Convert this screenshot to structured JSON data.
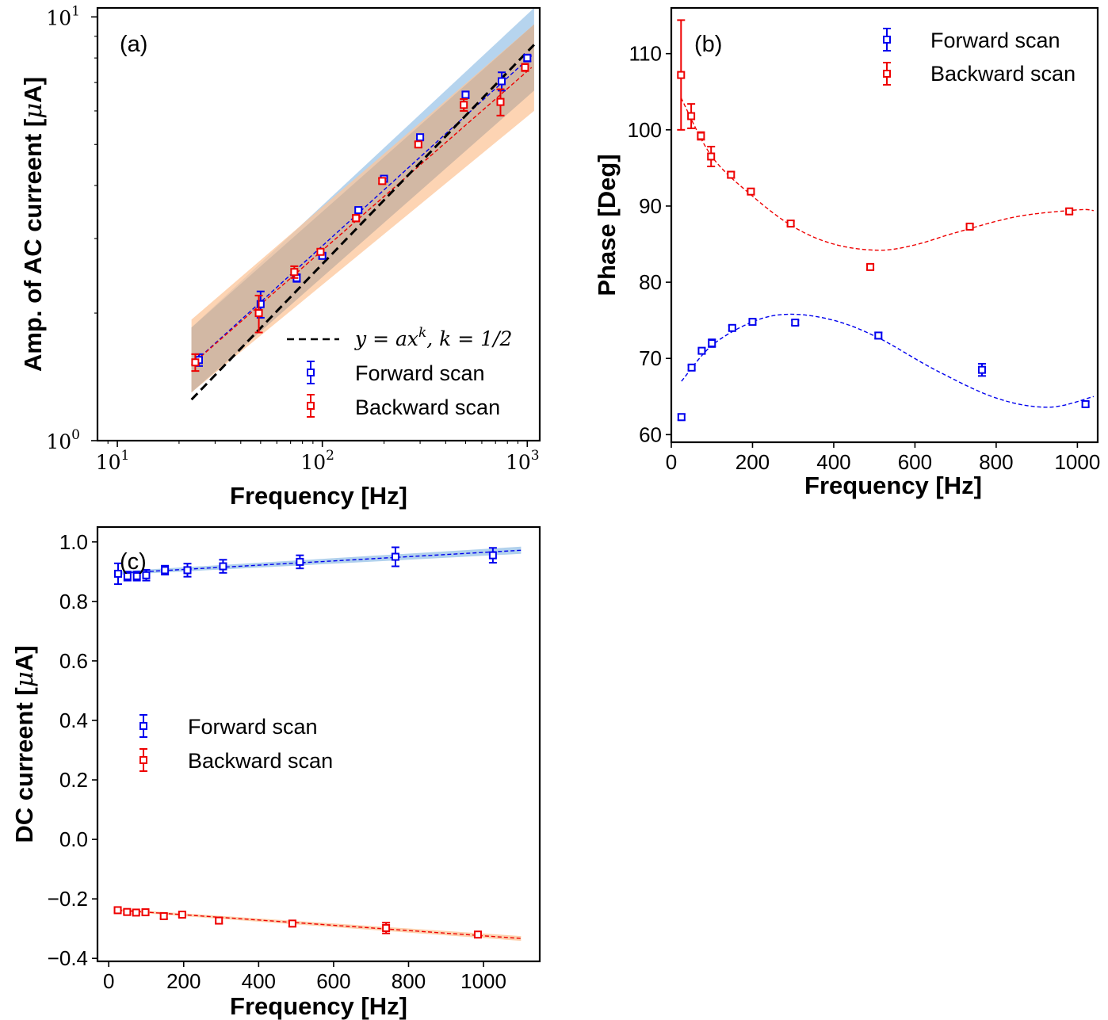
{
  "colors": {
    "forward": "#0000ee",
    "backward": "#ee0000",
    "forward_band": "#9ec5e8",
    "backward_band": "#fcc59a",
    "overlap_band": "#d2b8a4",
    "power_law": "#000000"
  },
  "legend": {
    "forward": "Forward scan",
    "backward": "Backward scan",
    "fit_prefix": "y = ax",
    "fit_exp": "k",
    "fit_suffix": ", k = 1/2"
  },
  "chart_data": [
    {
      "type": "scatter",
      "panel_label": "(a)",
      "xlabel": "Frequency [Hz]",
      "ylabel_prefix": "Amp. of AC curreent [",
      "ylabel_mu": "μ",
      "ylabel_suffix": "A]",
      "xscale": "log",
      "yscale": "log",
      "xlim": [
        8,
        1150
      ],
      "ylim": [
        1,
        10.5
      ],
      "xtick_base": "10",
      "xtick_exponents": [
        "1",
        "2",
        "3"
      ],
      "xticks": [
        10,
        100,
        1000
      ],
      "ytick_base": "10",
      "ytick_exponents": [
        "0",
        "1"
      ],
      "yticks": [
        1,
        10
      ],
      "legend_position": "lower-right",
      "series": [
        {
          "name": "Forward scan",
          "x": [
            25,
            50,
            75,
            100,
            150,
            200,
            300,
            500,
            750,
            1000
          ],
          "y": [
            1.55,
            2.1,
            2.42,
            2.73,
            3.5,
            4.15,
            5.2,
            6.55,
            7.05,
            8.0
          ],
          "yerr": [
            0.05,
            0.15,
            0.05,
            0.04,
            0.04,
            0.04,
            0.05,
            0.12,
            0.35,
            0.15
          ]
        },
        {
          "name": "Backward scan",
          "x": [
            24,
            49,
            73,
            98,
            146,
            196,
            294,
            490,
            740,
            975
          ],
          "y": [
            1.53,
            2.0,
            2.5,
            2.79,
            3.35,
            4.1,
            5.0,
            6.2,
            6.3,
            7.6
          ],
          "yerr": [
            0.07,
            0.2,
            0.08,
            0.04,
            0.06,
            0.06,
            0.07,
            0.2,
            0.45,
            0.15
          ]
        }
      ],
      "power_law": {
        "k": 0.5,
        "x": [
          23,
          1080
        ],
        "y": [
          1.25,
          8.6
        ]
      },
      "fit_forward": {
        "x": [
          23,
          1050
        ],
        "y": [
          1.51,
          8.1
        ]
      },
      "fit_backward": {
        "x": [
          23,
          1050
        ],
        "y": [
          1.51,
          7.6
        ]
      },
      "band_forward": {
        "x": [
          23,
          1080
        ],
        "lower": [
          1.3,
          6.7
        ],
        "upper": [
          1.85,
          10.5
        ]
      },
      "band_backward": {
        "x": [
          23,
          1080
        ],
        "lower": [
          1.3,
          6.0
        ],
        "upper": [
          1.93,
          9.6
        ]
      }
    },
    {
      "type": "scatter",
      "panel_label": "(b)",
      "xlabel": "Frequency [Hz]",
      "ylabel": "Phase [Deg]",
      "xlim": [
        0,
        1050
      ],
      "ylim": [
        59,
        116
      ],
      "xticks": [
        0,
        200,
        400,
        600,
        800,
        1000
      ],
      "yticks": [
        60,
        70,
        80,
        90,
        100,
        110
      ],
      "legend_position": "top-right",
      "series": [
        {
          "name": "Forward scan",
          "x": [
            25,
            50,
            75,
            100,
            150,
            200,
            305,
            510,
            765,
            1020
          ],
          "y": [
            62.3,
            68.8,
            71.0,
            72.0,
            74.0,
            74.8,
            74.7,
            73.0,
            68.5,
            64.0
          ],
          "yerr": [
            0.4,
            0.3,
            0.3,
            0.5,
            0.3,
            0.3,
            0.3,
            0.4,
            0.8,
            0.3
          ]
        },
        {
          "name": "Backward scan",
          "x": [
            24,
            49,
            73,
            98,
            147,
            196,
            294,
            490,
            735,
            980
          ],
          "y": [
            107.2,
            101.8,
            99.2,
            96.5,
            94.1,
            91.9,
            87.7,
            82.0,
            87.3,
            89.3
          ],
          "yerr": [
            7.2,
            1.6,
            0.5,
            1.3,
            0.4,
            0.3,
            0.3,
            0.3,
            0.3,
            0.3
          ]
        }
      ],
      "fit_forward": {
        "x": [
          25,
          100,
          200,
          290,
          400,
          510,
          650,
          800,
          930,
          1040
        ],
        "y": [
          67.0,
          71.7,
          74.8,
          75.8,
          75.0,
          72.7,
          68.5,
          64.8,
          63.6,
          65.0
        ]
      },
      "fit_backward": {
        "x": [
          24,
          100,
          200,
          300,
          400,
          510,
          600,
          700,
          850,
          1000,
          1040
        ],
        "y": [
          104.2,
          96.5,
          91.3,
          87.3,
          85.0,
          84.2,
          84.9,
          86.5,
          88.6,
          89.5,
          89.4
        ]
      }
    },
    {
      "type": "scatter",
      "panel_label": "(c)",
      "xlabel": "Frequency [Hz]",
      "ylabel_prefix": "DC curreent [",
      "ylabel_mu": "μ",
      "ylabel_suffix": "A]",
      "xlim": [
        -30,
        1150
      ],
      "ylim": [
        -0.41,
        1.05
      ],
      "xticks": [
        0,
        200,
        400,
        600,
        800,
        1000
      ],
      "yticks": [
        -0.4,
        -0.2,
        0.0,
        0.2,
        0.4,
        0.6,
        0.8,
        1.0
      ],
      "ytick_labels": [
        "−0.4",
        "−0.2",
        "0.0",
        "0.2",
        "0.4",
        "0.6",
        "0.8",
        "1.0"
      ],
      "legend_position": "center-left",
      "series": [
        {
          "name": "Forward scan",
          "x": [
            25,
            50,
            75,
            100,
            150,
            210,
            305,
            510,
            765,
            1025
          ],
          "y": [
            0.893,
            0.885,
            0.885,
            0.888,
            0.905,
            0.905,
            0.918,
            0.933,
            0.95,
            0.955
          ],
          "yerr": [
            0.035,
            0.015,
            0.015,
            0.018,
            0.015,
            0.022,
            0.022,
            0.022,
            0.032,
            0.025
          ]
        },
        {
          "name": "Backward scan",
          "x": [
            24,
            49,
            73,
            98,
            147,
            196,
            294,
            490,
            740,
            985
          ],
          "y": [
            -0.238,
            -0.244,
            -0.246,
            -0.245,
            -0.258,
            -0.253,
            -0.273,
            -0.283,
            -0.298,
            -0.32
          ],
          "yerr": [
            0.008,
            0.006,
            0.006,
            0.006,
            0.008,
            0.008,
            0.01,
            0.01,
            0.018,
            0.008
          ]
        }
      ],
      "fit_forward": {
        "x": [
          25,
          1100
        ],
        "y": [
          0.895,
          0.972
        ]
      },
      "fit_backward": {
        "x": [
          25,
          1100
        ],
        "y": [
          -0.238,
          -0.333
        ]
      }
    }
  ]
}
